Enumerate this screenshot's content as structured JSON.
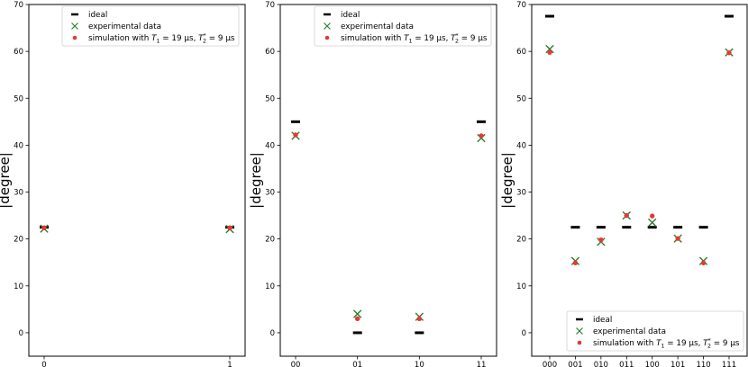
{
  "colors": {
    "ideal": "#000000",
    "experimental": "#2e7d32",
    "simulation": "#e53935"
  },
  "legend_labels": {
    "ideal": "ideal",
    "experimental": "experimental data",
    "simulation_prefix": "simulation with ",
    "t1_symbol": "T",
    "t1_sub": "1",
    "t1_value": " = 19 μs, ",
    "t2_symbol": "T",
    "t2_sub": "2",
    "t2_sup": "*",
    "t2_value": " = 9 μs"
  },
  "chart_data": [
    {
      "type": "scatter",
      "title": "",
      "xlabel": "",
      "ylabel": "|degree|",
      "ylim": [
        -5,
        70
      ],
      "yticks": [
        0,
        10,
        20,
        30,
        40,
        50,
        60,
        70
      ],
      "categories": [
        "0",
        "1"
      ],
      "legend_position": "top-right",
      "series": [
        {
          "name": "ideal",
          "marker": "dash",
          "values": [
            22.5,
            22.5
          ]
        },
        {
          "name": "experimental data",
          "marker": "x",
          "values": [
            22.2,
            22.1
          ]
        },
        {
          "name": "simulation with T1 = 19 μs, T2* = 9 μs",
          "marker": "dot",
          "values": [
            22.4,
            22.4
          ]
        }
      ]
    },
    {
      "type": "scatter",
      "title": "",
      "xlabel": "",
      "ylabel": "|degree|",
      "ylim": [
        -5,
        70
      ],
      "yticks": [
        0,
        10,
        20,
        30,
        40,
        50,
        60,
        70
      ],
      "categories": [
        "00",
        "01",
        "10",
        "11"
      ],
      "legend_position": "top-right",
      "series": [
        {
          "name": "ideal",
          "marker": "dash",
          "values": [
            45,
            0,
            0,
            45
          ]
        },
        {
          "name": "experimental data",
          "marker": "x",
          "values": [
            42.0,
            4.0,
            3.4,
            41.5
          ]
        },
        {
          "name": "simulation with T1 = 19 μs, T2* = 9 μs",
          "marker": "dot",
          "values": [
            42.2,
            3.0,
            3.0,
            42.0
          ]
        }
      ]
    },
    {
      "type": "scatter",
      "title": "",
      "xlabel": "",
      "ylabel": "|degree|",
      "ylim": [
        -5,
        70
      ],
      "yticks": [
        0,
        10,
        20,
        30,
        40,
        50,
        60,
        70
      ],
      "categories": [
        "000",
        "001",
        "010",
        "011",
        "100",
        "101",
        "110",
        "111"
      ],
      "legend_position": "bottom-right",
      "series": [
        {
          "name": "ideal",
          "marker": "dash",
          "values": [
            67.5,
            22.5,
            22.5,
            22.5,
            22.5,
            22.5,
            22.5,
            67.5
          ]
        },
        {
          "name": "experimental data",
          "marker": "x",
          "values": [
            60.5,
            15.3,
            19.4,
            25.0,
            23.5,
            20.1,
            15.3,
            59.8
          ]
        },
        {
          "name": "simulation with T1 = 19 μs, T2* = 9 μs",
          "marker": "dot",
          "values": [
            59.8,
            14.9,
            19.8,
            25.0,
            24.9,
            20.1,
            14.9,
            59.7
          ]
        }
      ]
    }
  ]
}
